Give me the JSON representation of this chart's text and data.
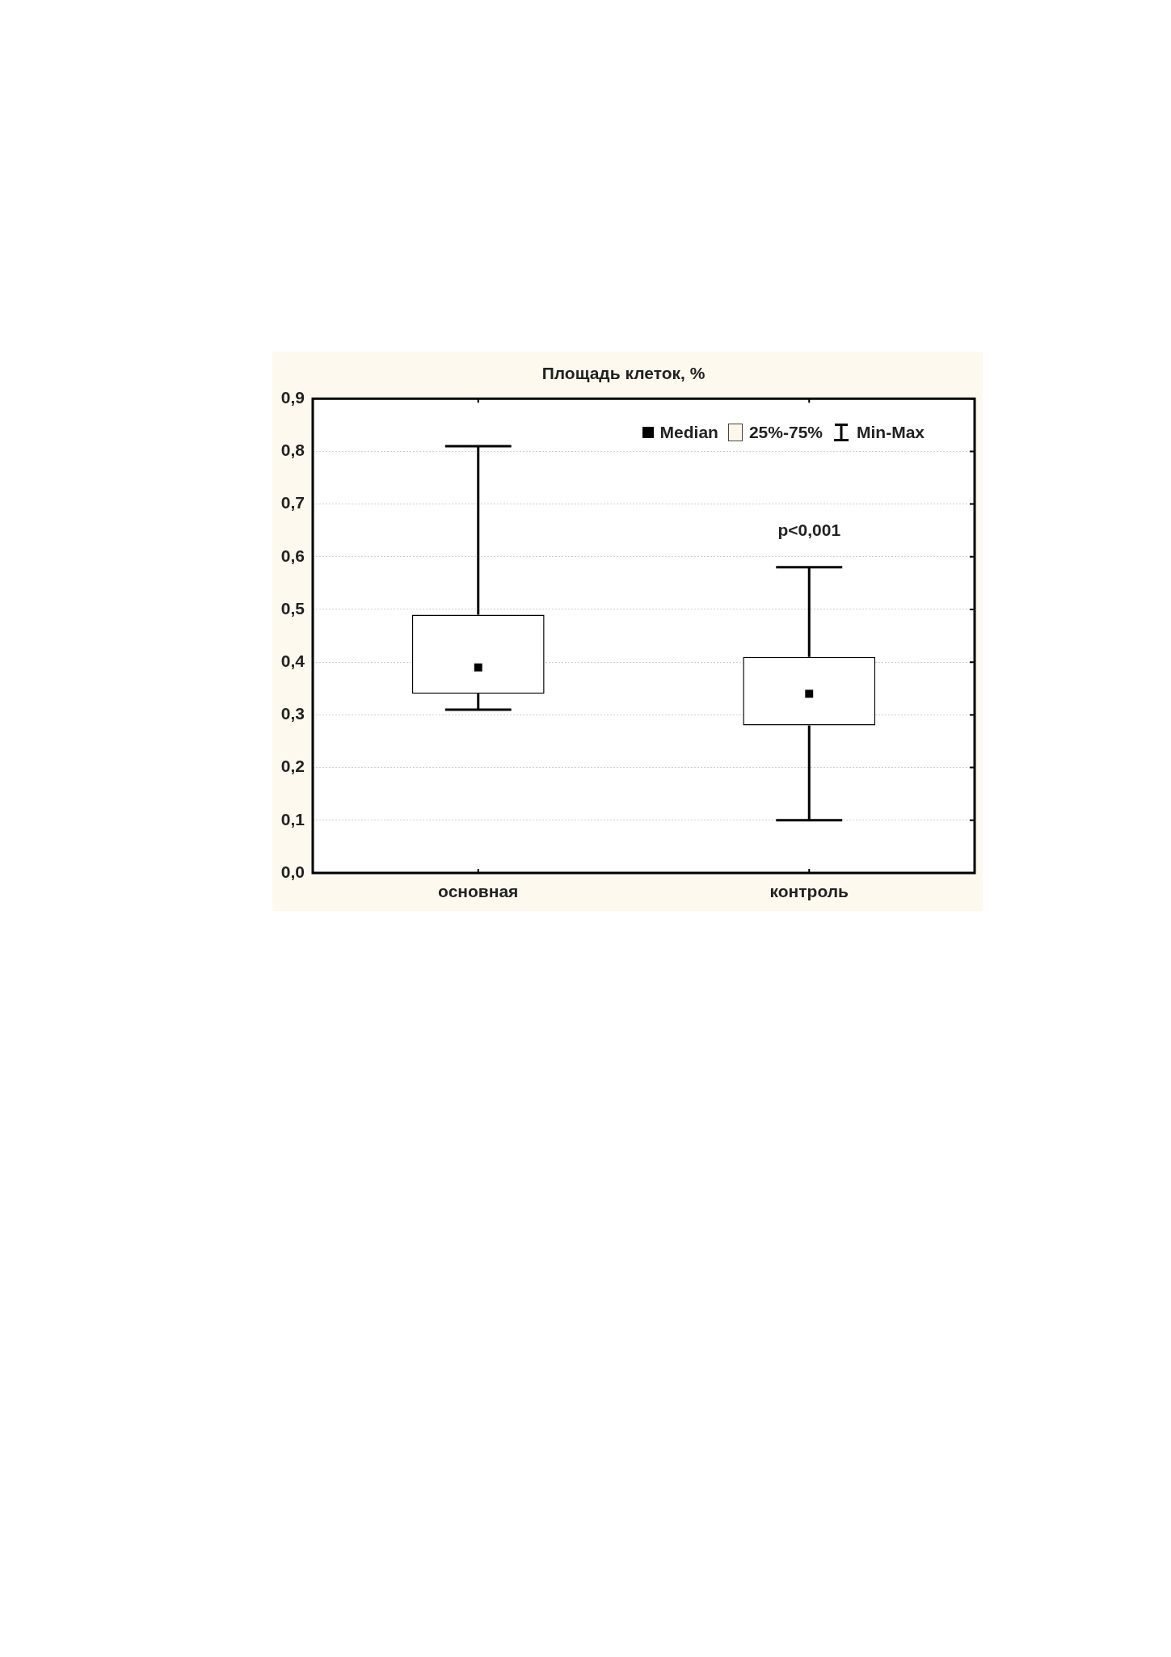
{
  "chart_data": {
    "type": "box",
    "title": "Площадь клеток, %",
    "categories": [
      "основная",
      "контроль"
    ],
    "boxes": [
      {
        "low": 0.31,
        "q1": 0.34,
        "median": 0.39,
        "q3": 0.49,
        "high": 0.81
      },
      {
        "low": 0.1,
        "q1": 0.28,
        "median": 0.34,
        "q3": 0.41,
        "high": 0.58
      }
    ],
    "color": "#000000",
    "marker": "square",
    "grid": "y",
    "ylim": [
      0,
      0.9
    ],
    "yticks": [
      {
        "value": 0,
        "label": "0,0"
      },
      {
        "value": 0.1,
        "label": "0,1"
      },
      {
        "value": 0.2,
        "label": "0,2"
      },
      {
        "value": 0.3,
        "label": "0,3"
      },
      {
        "value": 0.4,
        "label": "0,4"
      },
      {
        "value": 0.5,
        "label": "0,5"
      },
      {
        "value": 0.6,
        "label": "0,6"
      },
      {
        "value": 0.7,
        "label": "0,7"
      },
      {
        "value": 0.8,
        "label": "0,8"
      },
      {
        "value": 0.9,
        "label": "0,9"
      }
    ],
    "annotations": [
      "Median",
      "25%-75%",
      "Min-Max",
      "p<0,001"
    ]
  }
}
